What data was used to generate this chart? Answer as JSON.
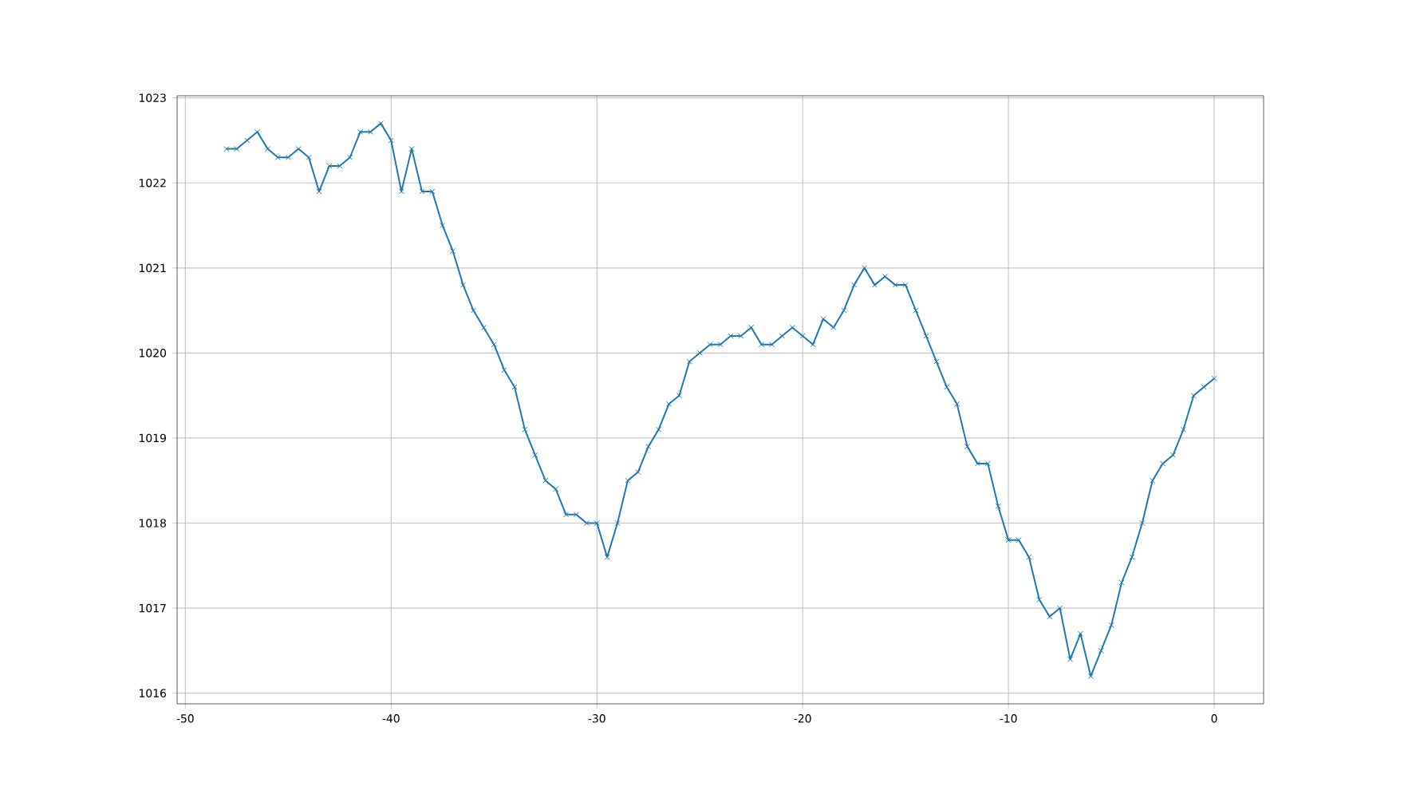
{
  "chart_data": {
    "type": "line",
    "x": [
      -48,
      -47.5,
      -47,
      -46.5,
      -46,
      -45.5,
      -45,
      -44.5,
      -44,
      -43.5,
      -43,
      -42.5,
      -42,
      -41.5,
      -41,
      -40.5,
      -40,
      -39.5,
      -39,
      -38.5,
      -38,
      -37.5,
      -37,
      -36.5,
      -36,
      -35.5,
      -35,
      -34.5,
      -34,
      -33.5,
      -33,
      -32.5,
      -32,
      -31.5,
      -31,
      -30.5,
      -30,
      -29.5,
      -29,
      -28.5,
      -28,
      -27.5,
      -27,
      -26.5,
      -26,
      -25.5,
      -25,
      -24.5,
      -24,
      -23.5,
      -23,
      -22.5,
      -22,
      -21.5,
      -21,
      -20.5,
      -20,
      -19.5,
      -19,
      -18.5,
      -18,
      -17.5,
      -17,
      -16.5,
      -16,
      -15.5,
      -15,
      -14.5,
      -14,
      -13.5,
      -13,
      -12.5,
      -12,
      -11.5,
      -11,
      -10.5,
      -10,
      -9.5,
      -9,
      -8.5,
      -8,
      -7.5,
      -7,
      -6.5,
      -6,
      -5.5,
      -5,
      -4.5,
      -4,
      -3.5,
      -3,
      -2.5,
      -2,
      -1.5,
      -1,
      -0.5,
      0
    ],
    "series": [
      {
        "color": "#1f77b4",
        "values": [
          1022.4,
          1022.4,
          1022.5,
          1022.6,
          1022.4,
          1022.3,
          1022.3,
          1022.4,
          1022.3,
          1021.9,
          1022.2,
          1022.2,
          1022.3,
          1022.6,
          1022.6,
          1022.7,
          1022.5,
          1021.9,
          1022.4,
          1021.9,
          1021.9,
          1021.5,
          1021.2,
          1020.8,
          1020.5,
          1020.3,
          1020.1,
          1019.8,
          1019.6,
          1019.1,
          1018.8,
          1018.5,
          1018.4,
          1018.1,
          1018.1,
          1018.0,
          1018.0,
          1017.6,
          1018.0,
          1018.5,
          1018.6,
          1018.9,
          1019.1,
          1019.4,
          1019.5,
          1019.9,
          1020.0,
          1020.1,
          1020.1,
          1020.2,
          1020.2,
          1020.3,
          1020.1,
          1020.1,
          1020.2,
          1020.3,
          1020.2,
          1020.1,
          1020.4,
          1020.3,
          1020.5,
          1020.8,
          1021.0,
          1020.8,
          1020.9,
          1020.8,
          1020.8,
          1020.5,
          1020.2,
          1019.9,
          1019.6,
          1019.4,
          1018.9,
          1018.7,
          1018.7,
          1018.2,
          1017.8,
          1017.8,
          1017.6,
          1017.1,
          1016.9,
          1017.0,
          1016.4,
          1016.7,
          1016.2,
          1016.5,
          1016.8,
          1017.3,
          1017.6,
          1018.0,
          1018.5,
          1018.7,
          1018.8,
          1019.1,
          1019.5,
          1019.6,
          1019.7
        ]
      }
    ],
    "xlim": [
      -50.4,
      2.4
    ],
    "ylim": [
      1015.875,
      1023.025
    ],
    "xticks": [
      -50,
      -40,
      -30,
      -20,
      -10,
      0
    ],
    "yticks": [
      1016,
      1017,
      1018,
      1019,
      1020,
      1021,
      1022,
      1023
    ],
    "grid": true,
    "marker": "cross",
    "line_style": "solid"
  }
}
